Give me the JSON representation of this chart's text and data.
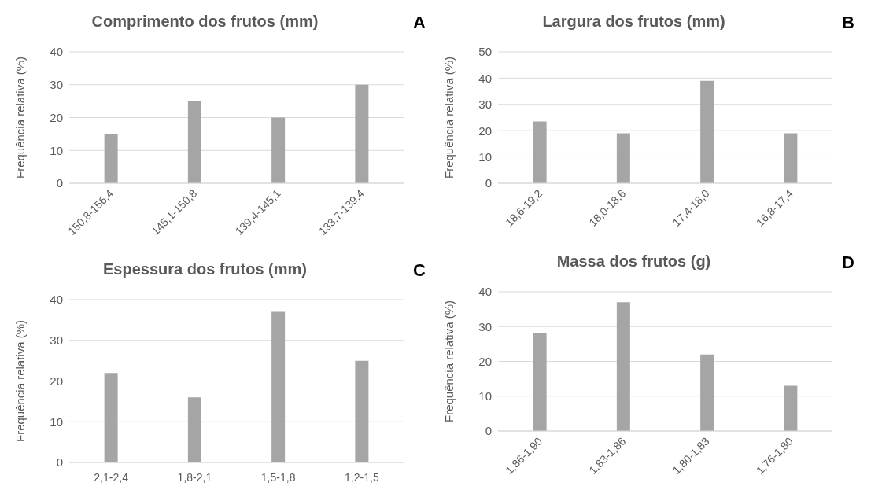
{
  "chart_data": [
    {
      "type": "bar",
      "title": "Comprimento dos frutos (mm)",
      "ylabel": "Frequência relativa (%)",
      "annotations": [
        "A"
      ],
      "categories": [
        "150,8-156,4",
        "145,1-150,8",
        "139,4-145,1",
        "133,7-139,4"
      ],
      "values": [
        15,
        25,
        20,
        30
      ],
      "color": "#a5a5a5",
      "ylim": [
        0,
        40
      ],
      "yticks": [
        0,
        10,
        20,
        30,
        40
      ],
      "grid": "y"
    },
    {
      "type": "bar",
      "title": "Largura dos frutos (mm)",
      "ylabel": "Frequência relativa (%)",
      "annotations": [
        "B"
      ],
      "categories": [
        "18,6-19,2",
        "18,0-18,6",
        "17,4-18,0",
        "16,8-17,4"
      ],
      "values": [
        23.5,
        19,
        39,
        19
      ],
      "color": "#a5a5a5",
      "ylim": [
        0,
        50
      ],
      "yticks": [
        0,
        10,
        20,
        30,
        40,
        50
      ],
      "grid": "y"
    },
    {
      "type": "bar",
      "title": "Espessura dos frutos (mm)",
      "ylabel": "Frequência relativa (%)",
      "annotations": [
        "C"
      ],
      "categories": [
        "2,1-2,4",
        "1,8-2,1",
        "1,5-1,8",
        "1,2-1,5"
      ],
      "values": [
        22,
        16,
        37,
        25
      ],
      "color": "#a5a5a5",
      "ylim": [
        0,
        40
      ],
      "yticks": [
        0,
        10,
        20,
        30,
        40
      ],
      "grid": "y"
    },
    {
      "type": "bar",
      "title": "Massa dos frutos (g)",
      "ylabel": "Frequência relativa (%)",
      "annotations": [
        "D"
      ],
      "categories": [
        "1,86-1,90",
        "1,83-1,86",
        "1,80-1,83",
        "1,76-1,80"
      ],
      "values": [
        28,
        37,
        22,
        13
      ],
      "color": "#a5a5a5",
      "ylim": [
        0,
        40
      ],
      "yticks": [
        0,
        10,
        20,
        30,
        40
      ],
      "grid": "y"
    }
  ]
}
